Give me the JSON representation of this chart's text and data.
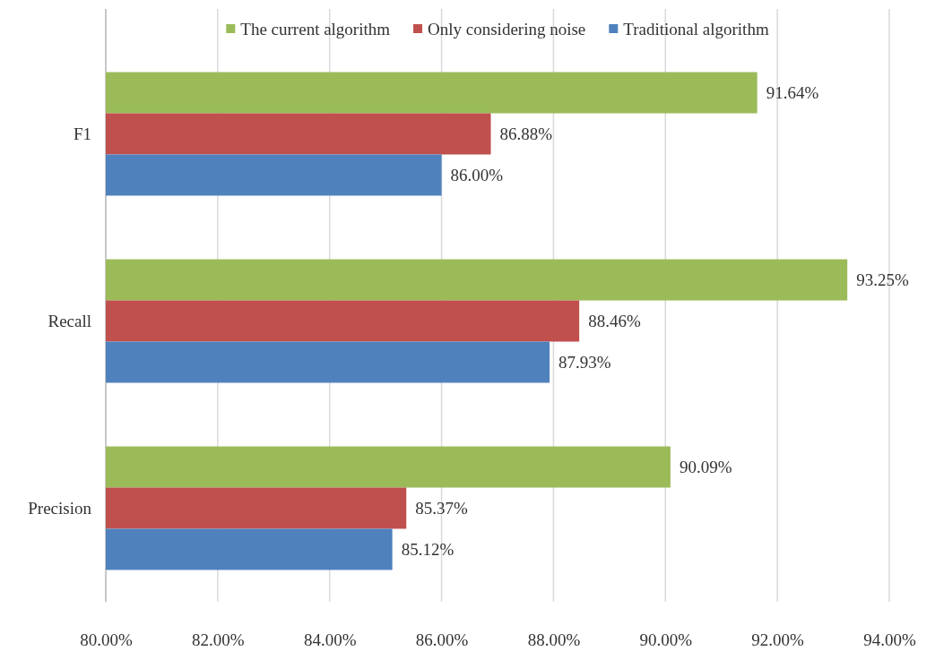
{
  "chart_data": {
    "type": "bar",
    "orientation": "horizontal",
    "categories": [
      "F1",
      "Recall",
      "Precision"
    ],
    "series": [
      {
        "name": "The current algorithm",
        "color": "#9bbb59",
        "values": [
          91.64,
          93.25,
          90.09
        ],
        "value_labels": [
          "91.64%",
          "93.25%",
          "90.09%"
        ]
      },
      {
        "name": "Only considering noise",
        "color": "#c0504d",
        "values": [
          86.88,
          88.46,
          85.37
        ],
        "value_labels": [
          "86.88%",
          "88.46%",
          "85.37%"
        ]
      },
      {
        "name": "Traditional algorithm",
        "color": "#4f81bd",
        "values": [
          86.0,
          87.93,
          85.12
        ],
        "value_labels": [
          "86.00%",
          "87.93%",
          "85.12%"
        ]
      }
    ],
    "xlim": [
      80,
      94
    ],
    "xticks": [
      {
        "value": 80,
        "label": "80.00%"
      },
      {
        "value": 82,
        "label": "82.00%"
      },
      {
        "value": 84,
        "label": "84.00%"
      },
      {
        "value": 86,
        "label": "86.00%"
      },
      {
        "value": 88,
        "label": "88.00%"
      },
      {
        "value": 90,
        "label": "90.00%"
      },
      {
        "value": 92,
        "label": "92.00%"
      },
      {
        "value": 94,
        "label": "94.00%"
      }
    ],
    "grid": "x",
    "legend": "top"
  }
}
